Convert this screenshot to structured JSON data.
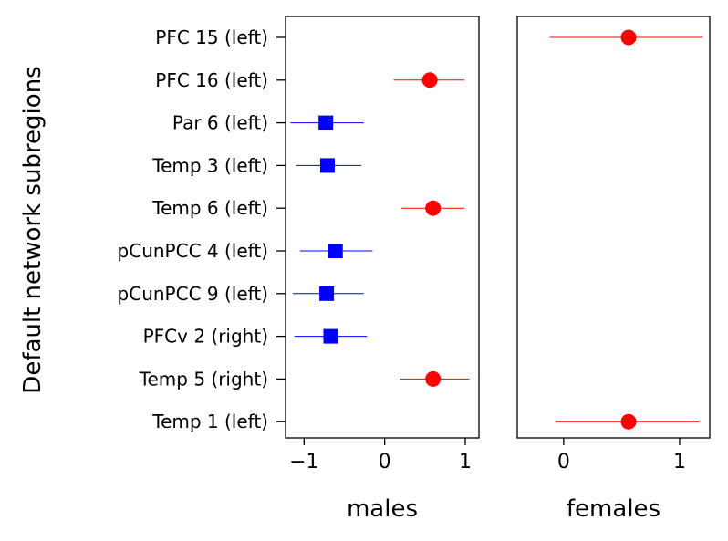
{
  "ylabel": "Default network subregions",
  "colors": {
    "positive": "#ff0000",
    "negative": "#0000ff"
  },
  "chart_data": [
    {
      "type": "scatter",
      "title": "",
      "xlabel": "males",
      "ylabel": "Default network subregions",
      "xlim": [
        -1.23,
        1.17
      ],
      "xticks": [
        -1,
        0,
        1
      ],
      "xtick_labels": [
        "−1",
        "0",
        "1"
      ],
      "grid": false,
      "categories": [
        "PFC 15 (left)",
        "PFC 16 (left)",
        "Par 6 (left)",
        "Temp 3 (left)",
        "Temp 6 (left)",
        "pCunPCC 4 (left)",
        "pCunPCC 9 (left)",
        "PFCv 2 (right)",
        "Temp 5 (right)",
        "Temp 1 (left)"
      ],
      "points": [
        {
          "category": "PFC 16 (left)",
          "value": 0.56,
          "ci": [
            0.11,
            0.99
          ],
          "marker": "circle",
          "color": "#ff0000"
        },
        {
          "category": "Par 6 (left)",
          "value": -0.73,
          "ci": [
            -1.17,
            -0.26
          ],
          "marker": "square",
          "color": "#0000ff"
        },
        {
          "category": "Temp 3 (left)",
          "value": -0.71,
          "ci": [
            -1.1,
            -0.29
          ],
          "marker": "square",
          "color": "#0000ff"
        },
        {
          "category": "Temp 6 (left)",
          "value": 0.6,
          "ci": [
            0.21,
            0.99
          ],
          "marker": "circle",
          "color": "#ff0000"
        },
        {
          "category": "pCunPCC 4 (left)",
          "value": -0.61,
          "ci": [
            -1.05,
            -0.15
          ],
          "marker": "square",
          "color": "#0000ff"
        },
        {
          "category": "pCunPCC 9 (left)",
          "value": -0.72,
          "ci": [
            -1.14,
            -0.26
          ],
          "marker": "square",
          "color": "#0000ff"
        },
        {
          "category": "PFCv 2 (right)",
          "value": -0.67,
          "ci": [
            -1.12,
            -0.22
          ],
          "marker": "square",
          "color": "#0000ff"
        },
        {
          "category": "Temp 5 (right)",
          "value": 0.6,
          "ci": [
            0.19,
            1.05
          ],
          "marker": "circle",
          "color": "#ff0000"
        }
      ]
    },
    {
      "type": "scatter",
      "title": "",
      "xlabel": "females",
      "xlim": [
        -0.4,
        1.26
      ],
      "xticks": [
        0,
        1
      ],
      "xtick_labels": [
        "0",
        "1"
      ],
      "grid": false,
      "categories": [
        "PFC 15 (left)",
        "PFC 16 (left)",
        "Par 6 (left)",
        "Temp 3 (left)",
        "Temp 6 (left)",
        "pCunPCC 4 (left)",
        "pCunPCC 9 (left)",
        "PFCv 2 (right)",
        "Temp 5 (right)",
        "Temp 1 (left)"
      ],
      "points": [
        {
          "category": "PFC 15 (left)",
          "value": 0.56,
          "ci": [
            -0.12,
            1.2
          ],
          "marker": "circle",
          "color": "#ff0000"
        },
        {
          "category": "Temp 1 (left)",
          "value": 0.56,
          "ci": [
            -0.07,
            1.17
          ],
          "marker": "circle",
          "color": "#ff0000"
        }
      ]
    }
  ]
}
